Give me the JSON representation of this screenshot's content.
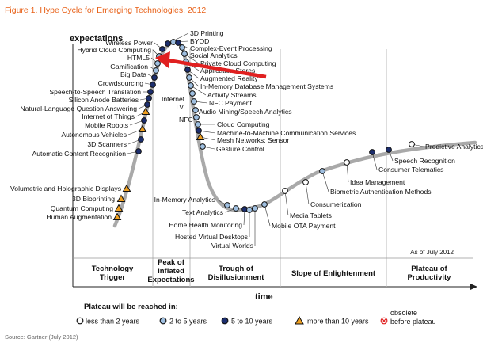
{
  "chart_data": {
    "type": "hype-cycle",
    "title": "Figure 1. Hype Cycle for Emerging Technologies, 2012",
    "ylabel": "expectations",
    "xlabel": "time",
    "as_of": "As of July 2012",
    "source": "Source: Gartner (July 2012)",
    "phases": [
      {
        "id": "trigger",
        "lines": [
          "Technology",
          "Trigger"
        ]
      },
      {
        "id": "peak",
        "lines": [
          "Peak of",
          "Inflated",
          "Expectations"
        ]
      },
      {
        "id": "trough",
        "lines": [
          "Trough of",
          "Disillusionment"
        ]
      },
      {
        "id": "slope",
        "lines": [
          "Slope of Enlightenment"
        ]
      },
      {
        "id": "plateau",
        "lines": [
          "Plateau of",
          "Productivity"
        ]
      }
    ],
    "legend": {
      "title": "Plateau will be reached in:",
      "items": [
        {
          "key": "lt2",
          "label": "less than 2 years",
          "fill": "#ffffff",
          "stroke": "#111111"
        },
        {
          "key": "2to5",
          "label": "2 to 5 years",
          "fill": "#9fbfe0",
          "stroke": "#111111"
        },
        {
          "key": "5to10",
          "label": "5 to 10 years",
          "fill": "#1c2e6e",
          "stroke": "#111111"
        },
        {
          "key": "gt10",
          "label": "more than 10 years",
          "fill": "#f0a020",
          "stroke": "#111111"
        },
        {
          "key": "obsolete",
          "label_lines": [
            "obsolete",
            "before plateau"
          ],
          "fill": "#ffffff",
          "stroke": "#e02020"
        }
      ]
    },
    "technologies": [
      {
        "name": "Volumetric and Holographic Displays",
        "phase": "trigger",
        "marker": "gt10"
      },
      {
        "name": "3D Bioprinting",
        "phase": "trigger",
        "marker": "gt10"
      },
      {
        "name": "Quantum Computing",
        "phase": "trigger",
        "marker": "gt10"
      },
      {
        "name": "Human Augmentation",
        "phase": "trigger",
        "marker": "gt10"
      },
      {
        "name": "Automatic Content Recognition",
        "phase": "trigger",
        "marker": "5to10"
      },
      {
        "name": "3D Scanners",
        "phase": "trigger",
        "marker": "5to10"
      },
      {
        "name": "Autonomous Vehicles",
        "phase": "trigger",
        "marker": "gt10"
      },
      {
        "name": "Mobile Robots",
        "phase": "trigger",
        "marker": "5to10"
      },
      {
        "name": "Internet of Things",
        "phase": "trigger",
        "marker": "gt10"
      },
      {
        "name": "Natural-Language Question Answering",
        "phase": "trigger",
        "marker": "5to10"
      },
      {
        "name": "Silicon Anode Batteries",
        "phase": "trigger",
        "marker": "5to10"
      },
      {
        "name": "Speech-to-Speech Translation",
        "phase": "trigger",
        "marker": "5to10"
      },
      {
        "name": "Crowdsourcing",
        "phase": "peak",
        "marker": "5to10"
      },
      {
        "name": "Big Data",
        "phase": "peak",
        "marker": "5to10"
      },
      {
        "name": "Gamification",
        "phase": "peak",
        "marker": "2to5"
      },
      {
        "name": "HTML5",
        "phase": "peak",
        "marker": "2to5"
      },
      {
        "name": "Hybrid Cloud Computing",
        "phase": "peak",
        "marker": "2to5"
      },
      {
        "name": "Wireless Power",
        "phase": "peak",
        "marker": "5to10"
      },
      {
        "name": "3D Printing",
        "phase": "peak",
        "marker": "5to10"
      },
      {
        "name": "BYOD",
        "phase": "peak",
        "marker": "2to5"
      },
      {
        "name": "Complex-Event Processing",
        "phase": "peak",
        "marker": "5to10"
      },
      {
        "name": "Social Analytics",
        "phase": "peak",
        "marker": "2to5"
      },
      {
        "name": "Private Cloud Computing",
        "phase": "peak",
        "marker": "2to5"
      },
      {
        "name": "Application Stores",
        "phase": "peak",
        "marker": "2to5"
      },
      {
        "name": "Augmented Reality",
        "phase": "trough",
        "marker": "5to10"
      },
      {
        "name": "In-Memory Database Management Systems",
        "phase": "trough",
        "marker": "2to5"
      },
      {
        "name": "Activity Streams",
        "phase": "trough",
        "marker": "2to5"
      },
      {
        "name": "Internet TV",
        "phase": "trough",
        "marker": "2to5"
      },
      {
        "name": "NFC Payment",
        "phase": "trough",
        "marker": "2to5"
      },
      {
        "name": "Audio Mining/Speech Analytics",
        "phase": "trough",
        "marker": "2to5"
      },
      {
        "name": "NFC",
        "phase": "trough",
        "marker": "2to5"
      },
      {
        "name": "Cloud Computing",
        "phase": "trough",
        "marker": "2to5"
      },
      {
        "name": "Machine-to-Machine Communication Services",
        "phase": "trough",
        "marker": "5to10"
      },
      {
        "name": "Mesh Networks: Sensor",
        "phase": "trough",
        "marker": "gt10"
      },
      {
        "name": "Gesture Control",
        "phase": "trough",
        "marker": "2to5"
      },
      {
        "name": "In-Memory Analytics",
        "phase": "trough",
        "marker": "2to5"
      },
      {
        "name": "Text Analytics",
        "phase": "trough",
        "marker": "2to5"
      },
      {
        "name": "Home Health Monitoring",
        "phase": "trough",
        "marker": "5to10"
      },
      {
        "name": "Hosted Virtual Desktops",
        "phase": "trough",
        "marker": "2to5"
      },
      {
        "name": "Virtual Worlds",
        "phase": "trough",
        "marker": "2to5"
      },
      {
        "name": "Mobile OTA Payment",
        "phase": "trough",
        "marker": "2to5"
      },
      {
        "name": "Media Tablets",
        "phase": "slope",
        "marker": "lt2"
      },
      {
        "name": "Consumerization",
        "phase": "slope",
        "marker": "lt2"
      },
      {
        "name": "Biometric Authentication Methods",
        "phase": "slope",
        "marker": "2to5"
      },
      {
        "name": "Idea Management",
        "phase": "slope",
        "marker": "lt2"
      },
      {
        "name": "Consumer Telematics",
        "phase": "slope",
        "marker": "5to10"
      },
      {
        "name": "Speech Recognition",
        "phase": "slope",
        "marker": "5to10"
      },
      {
        "name": "Predictive Analytics",
        "phase": "plateau",
        "marker": "lt2"
      }
    ],
    "annotations": [
      {
        "type": "arrow",
        "target": "HTML5",
        "color": "#e02020"
      }
    ]
  }
}
